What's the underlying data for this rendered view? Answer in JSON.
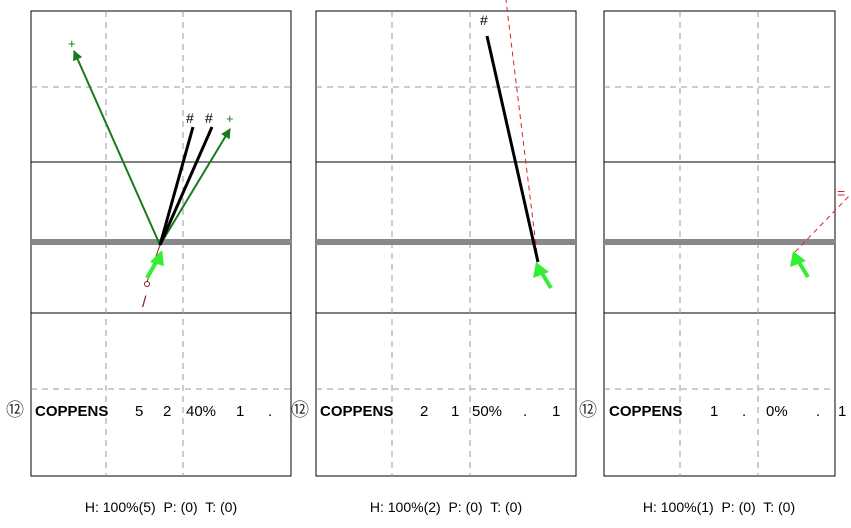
{
  "panels": [
    {
      "badge": "⑫",
      "name": "COPPENS",
      "n1": "5",
      "n2": "2",
      "pct": "40%",
      "n3": "1",
      "n4": ".",
      "footer": "H: 100%(5)  P: (0)  T: (0)",
      "markers": [
        "+",
        "#",
        "#",
        "+",
        "/"
      ]
    },
    {
      "badge": "⑫",
      "name": "COPPENS",
      "n1": "2",
      "n2": "1",
      "pct": "50%",
      "n3": ".",
      "n4": "1",
      "footer": "H: 100%(2)  P: (0)  T: (0)",
      "markers": [
        "#"
      ]
    },
    {
      "badge": "⑫",
      "name": "COPPENS",
      "n1": "1",
      "n2": ".",
      "pct": "0%",
      "n3": ".",
      "n4": "1",
      "footer": "H: 100%(1)  P: (0)  T: (0)",
      "markers": [
        "="
      ]
    }
  ],
  "colors": {
    "court_line": "#000000",
    "grid_dash": "#999999",
    "net": "#888888",
    "shot_black": "#000000",
    "shot_green": "#1a7a1a",
    "arrow_bright": "#33ee33",
    "trajectory_red": "#dd2222",
    "slash_maroon": "#8b1a1a"
  }
}
